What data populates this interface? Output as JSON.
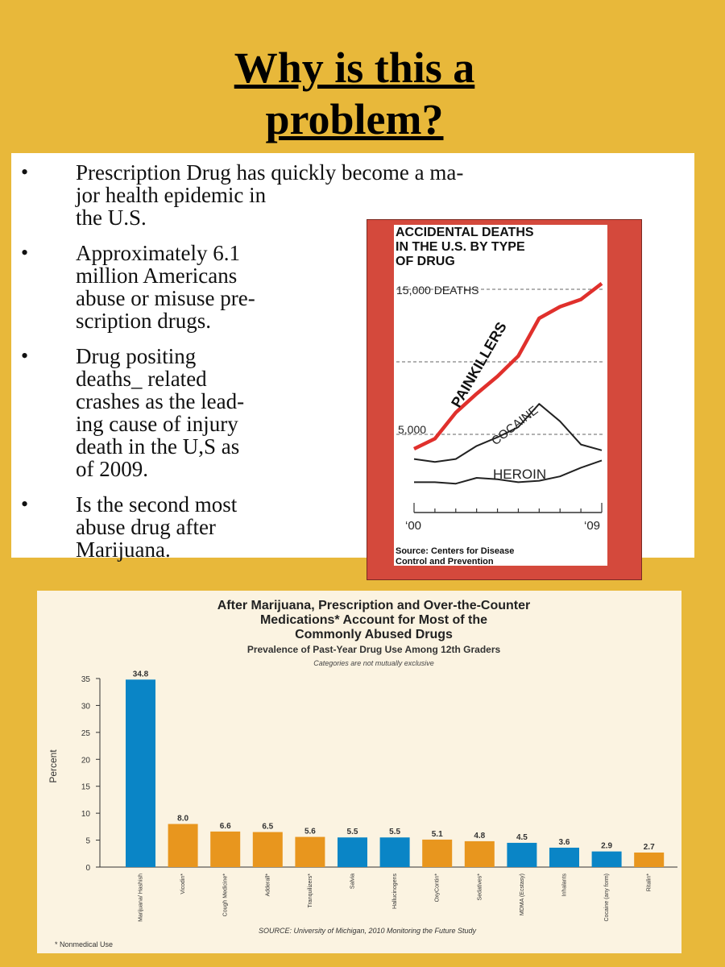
{
  "slide": {
    "title_line1": "Why is this a ",
    "title_line2": "problem?",
    "bullets": [
      "Prescription Drug has quickly become a ma-\njor health epidemic in\nthe U.S.",
      "Approximately 6.1\nmillion Americans\nabuse or misuse pre-\nscription drugs.",
      "Drug positing\ndeaths_ related\ncrashes as the lead-\ning cause of injury\ndeath in the U,S as\nof 2009.",
      "Is the second most\nabuse drug after\nMarijuana."
    ],
    "bullet_glyph": "•",
    "colors": {
      "background": "#e8b83a",
      "frame": "#d4493c"
    }
  },
  "chart_data": [
    {
      "type": "line",
      "title_lines": [
        "ACCIDENTAL DEATHS",
        "IN THE U.S. BY TYPE",
        "OF DRUG"
      ],
      "x": [
        2000,
        2001,
        2002,
        2003,
        2004,
        2005,
        2006,
        2007,
        2008,
        2009
      ],
      "x_tick_labels": [
        "‘00",
        "‘09"
      ],
      "y_tick_labels": [
        "15,000 DEATHS",
        "5,000"
      ],
      "ylim": [
        0,
        16000
      ],
      "gridlines": [
        5000,
        10000,
        15000
      ],
      "series": [
        {
          "name": "PAINKILLERS",
          "color": "#e0302c",
          "values": [
            4000,
            4700,
            6500,
            7800,
            9000,
            10400,
            13000,
            13800,
            14300,
            15400
          ]
        },
        {
          "name": "COCAINE",
          "color": "#222222",
          "values": [
            3300,
            3100,
            3300,
            4200,
            4800,
            5500,
            7100,
            5900,
            4300,
            3900
          ]
        },
        {
          "name": "HEROIN",
          "color": "#222222",
          "values": [
            1700,
            1700,
            1600,
            2000,
            1900,
            1700,
            1800,
            2100,
            2700,
            3200
          ]
        }
      ],
      "source": [
        "Source: Centers for Disease",
        "Control and Prevention"
      ]
    },
    {
      "type": "bar",
      "title_lines": [
        "After Marijuana, Prescription and Over-the-Counter",
        "Medications* Account for Most of the",
        "Commonly Abused Drugs"
      ],
      "subtitle": "Prevalence of Past-Year Drug Use Among 12th Graders",
      "note": "Categories are not mutually exclusive",
      "ylabel": "Percent",
      "ylim": [
        0,
        35
      ],
      "y_ticks": [
        0,
        5,
        10,
        15,
        20,
        25,
        30,
        35
      ],
      "categories": [
        "Marijuana/ Hashish",
        "Vicodin*",
        "Cough Medicine*",
        "Adderall*",
        "Tranquilizers*",
        "Salvia",
        "Hallucinogens",
        "OxyContin*",
        "Sedatives*",
        "MDMA (Ecstasy)",
        "Inhalants",
        "Cocaine (any form)",
        "Ritalin*"
      ],
      "values": [
        34.8,
        8.0,
        6.6,
        6.5,
        5.6,
        5.5,
        5.5,
        5.1,
        4.8,
        4.5,
        3.6,
        2.9,
        2.7
      ],
      "value_labels": [
        "34.8",
        "8.0",
        "6.6",
        "6.5",
        "5.6",
        "5.5",
        "5.5",
        "5.1",
        "4.8",
        "4.5",
        "3.6",
        "2.9",
        "2.7"
      ],
      "bar_colors": [
        "#0a85c6",
        "#e8961e",
        "#e8961e",
        "#e8961e",
        "#e8961e",
        "#0a85c6",
        "#0a85c6",
        "#e8961e",
        "#e8961e",
        "#0a85c6",
        "#0a85c6",
        "#0a85c6",
        "#e8961e"
      ],
      "source": "SOURCE: University of Michigan, 2010 Monitoring the Future Study",
      "footnote": "* Nonmedical Use"
    }
  ]
}
